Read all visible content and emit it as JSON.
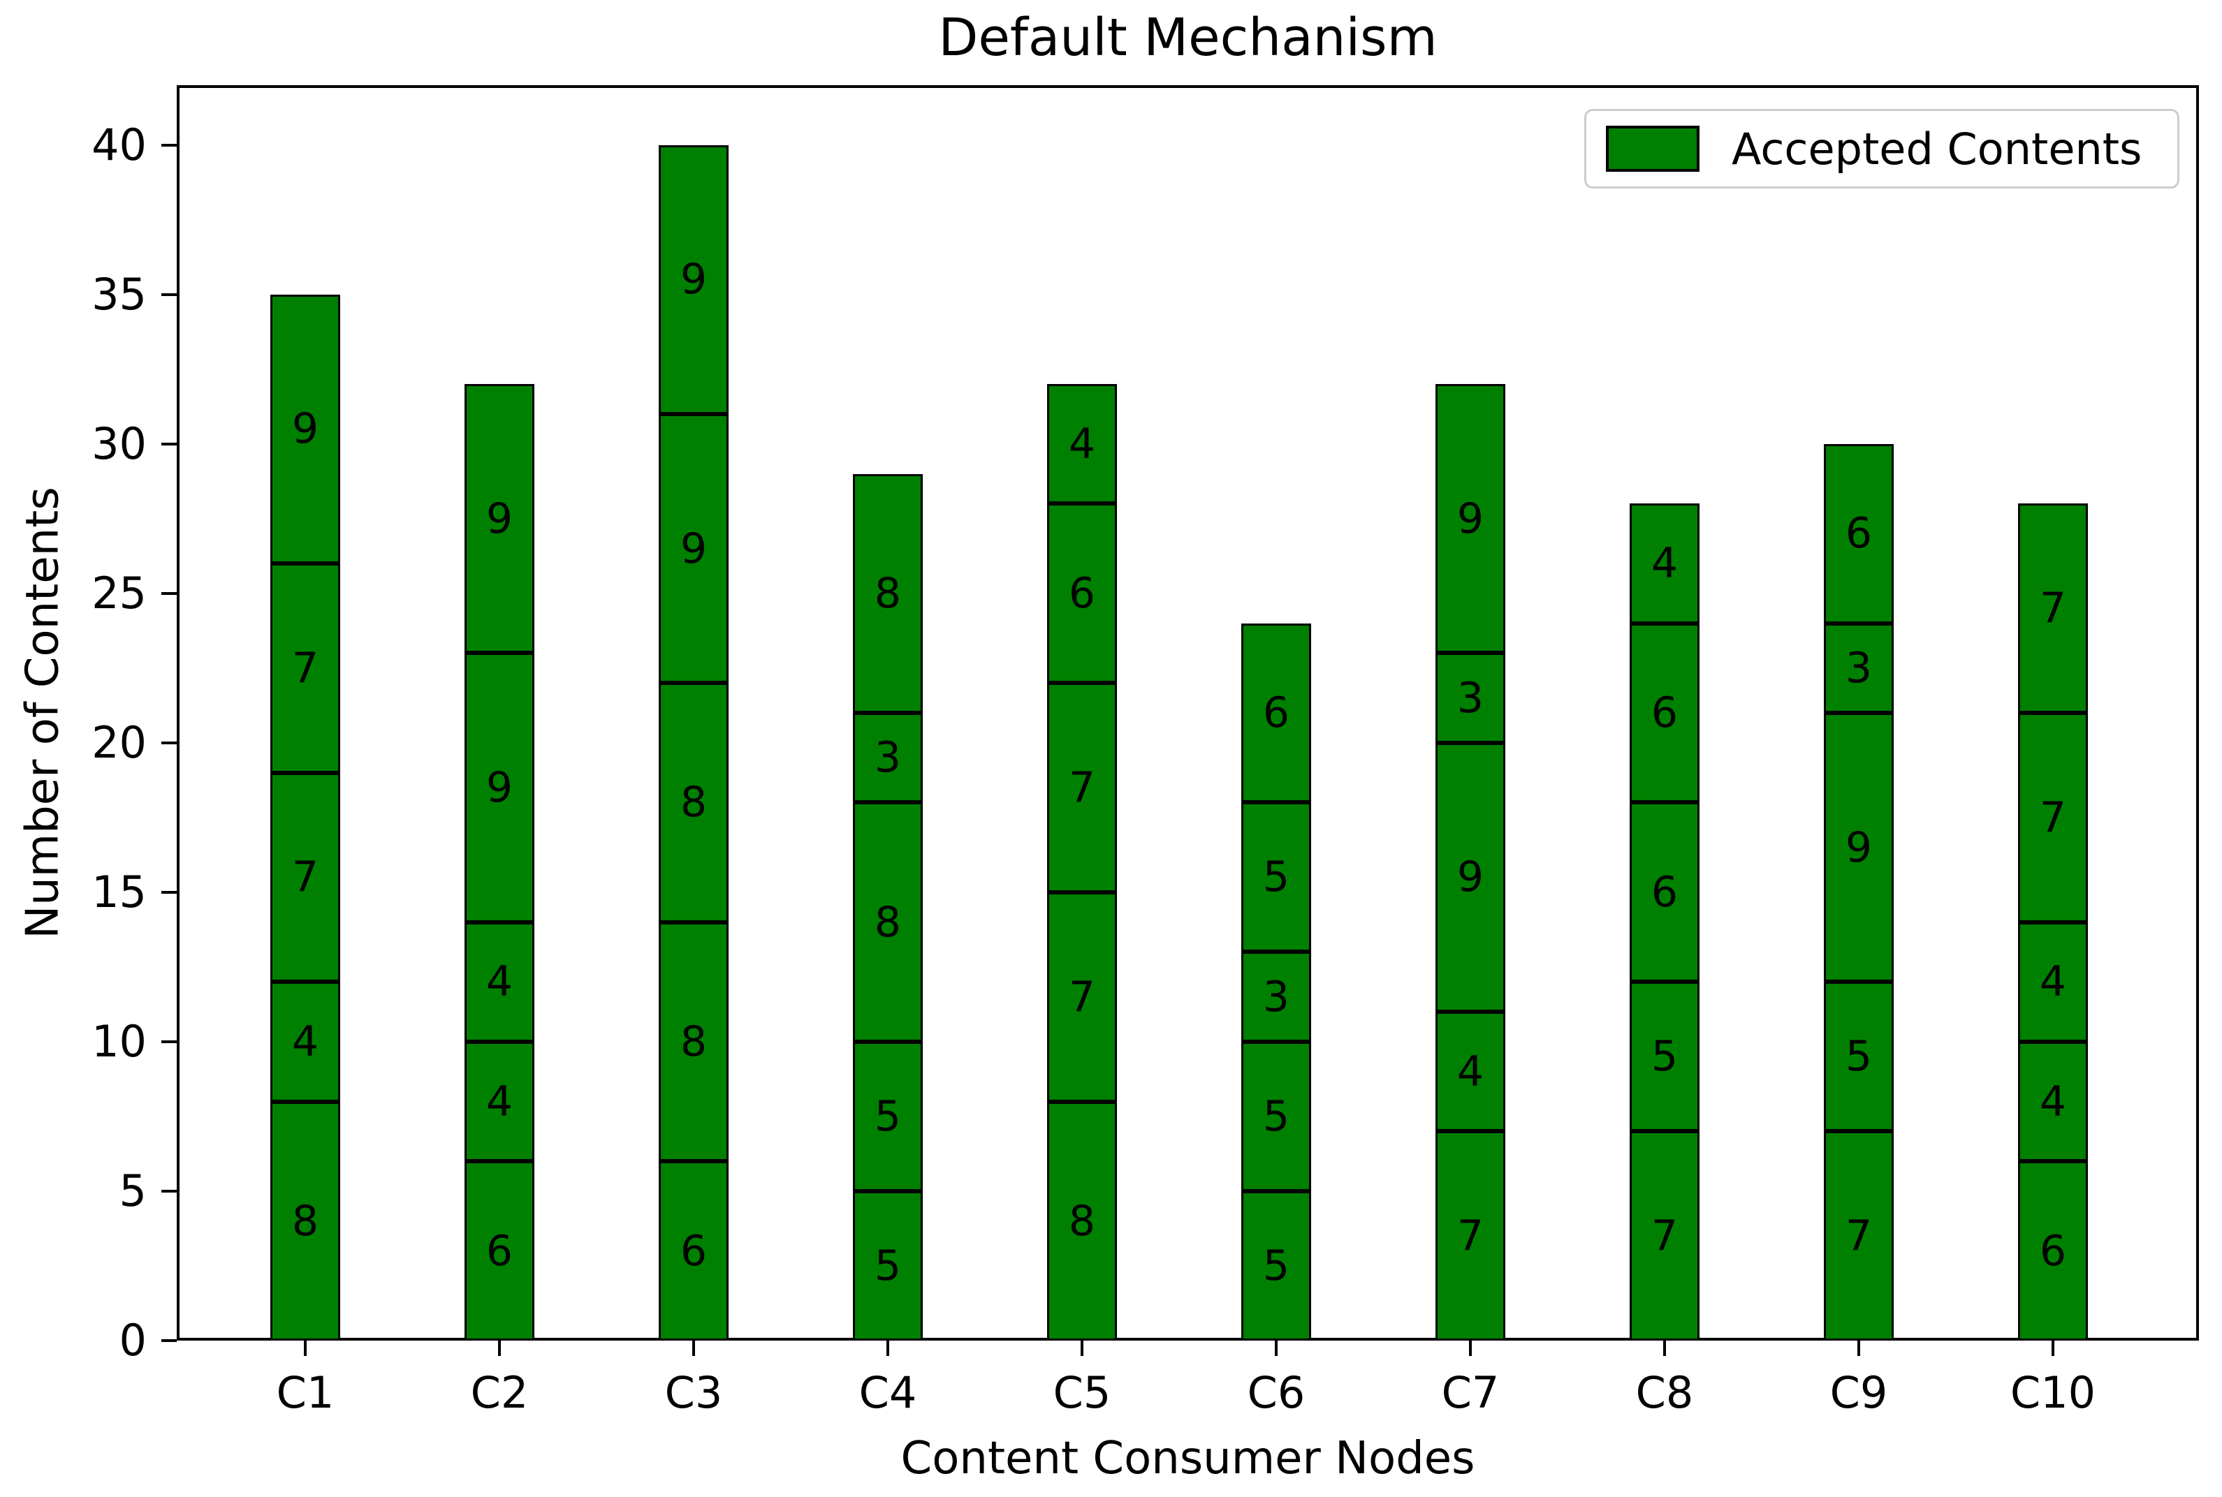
{
  "chart_data": {
    "type": "bar",
    "stacked": true,
    "title": "Default Mechanism",
    "xlabel": "Content Consumer Nodes",
    "ylabel": "Number of Contents",
    "categories": [
      "C1",
      "C2",
      "C3",
      "C4",
      "C5",
      "C6",
      "C7",
      "C8",
      "C9",
      "C10"
    ],
    "stacks_bottom_to_top": [
      [
        8,
        4,
        7,
        7,
        9
      ],
      [
        6,
        4,
        4,
        9,
        9
      ],
      [
        6,
        8,
        8,
        9,
        9
      ],
      [
        5,
        5,
        8,
        3,
        8
      ],
      [
        8,
        7,
        7,
        6,
        4
      ],
      [
        5,
        5,
        3,
        5,
        6
      ],
      [
        7,
        4,
        9,
        3,
        9
      ],
      [
        7,
        5,
        6,
        6,
        4
      ],
      [
        7,
        5,
        9,
        3,
        6
      ],
      [
        6,
        4,
        4,
        7,
        7
      ]
    ],
    "bar_totals": [
      35,
      32,
      40,
      29,
      32,
      24,
      32,
      28,
      30,
      28
    ],
    "bar_color": "#008000",
    "bar_edge_color": "#000000",
    "segment_label_color": "#000000",
    "ylim": [
      0,
      42
    ],
    "yticks": [
      0,
      5,
      10,
      15,
      20,
      25,
      30,
      35,
      40
    ],
    "grid": false,
    "legend": {
      "label": "Accepted Contents",
      "position": "upper right"
    }
  }
}
